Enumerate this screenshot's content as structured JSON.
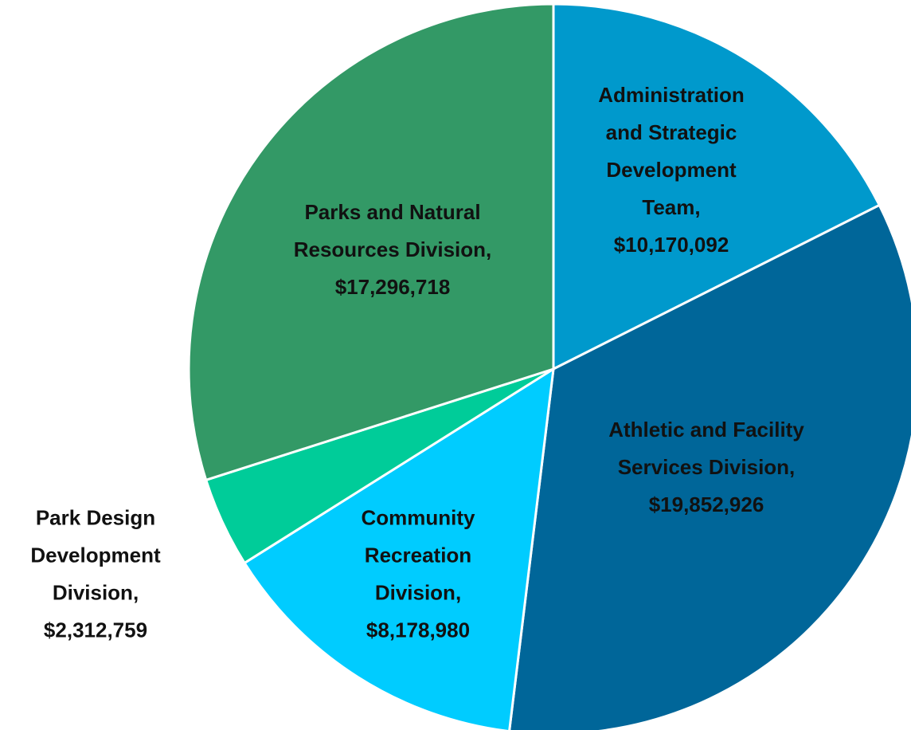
{
  "chart_data": {
    "type": "pie",
    "categories": [
      "Administration and Strategic Development Team,",
      "Athletic and Facility Services Division,",
      "Community Recreation Division,",
      "Park Design Development Division,",
      "Parks and Natural Resources Division,"
    ],
    "values": [
      10170092,
      19852926,
      8178980,
      2312759,
      17296718
    ],
    "value_labels": [
      "$10,170,092",
      "$19,852,926",
      "$8,178,980",
      "$2,312,759",
      "$17,296,718"
    ],
    "colors": [
      "#0099cc",
      "#006699",
      "#00ccff",
      "#00cc99",
      "#339966"
    ]
  }
}
